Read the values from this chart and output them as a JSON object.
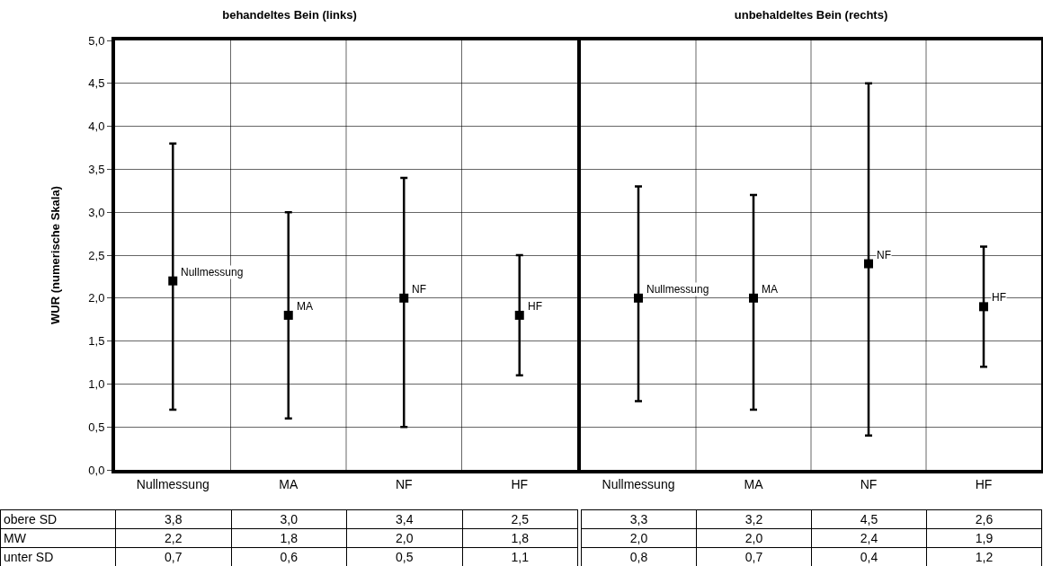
{
  "chart_data": [
    {
      "type": "scatter",
      "title": "behandeltes Bein (links)",
      "ylabel": "WUR (numerische Skala)",
      "categories": [
        "Nullmessung",
        "MA",
        "NF",
        "HF"
      ],
      "series": [
        {
          "name": "MW",
          "color": "#000000",
          "values": [
            2.2,
            1.8,
            2.0,
            1.8
          ],
          "value_labels": [
            "2,2",
            "1,8",
            "2,0",
            "1,8"
          ],
          "errors": [
            [
              0.7,
              3.8
            ],
            [
              0.6,
              3.0
            ],
            [
              0.5,
              3.4
            ],
            [
              1.1,
              2.5
            ]
          ]
        }
      ],
      "annotations": [
        "obere SD",
        "3,8",
        "3,0",
        "3,4",
        "2,5",
        "unter SD",
        "0,7",
        "0,6",
        "0,5",
        "1,1"
      ],
      "ylim": [
        0,
        5
      ],
      "yticks": [
        {
          "value": 0,
          "label": "0,0"
        },
        {
          "value": 0.5,
          "label": "0,5"
        },
        {
          "value": 1,
          "label": "1,0"
        },
        {
          "value": 1.5,
          "label": "1,5"
        },
        {
          "value": 2,
          "label": "2,0"
        },
        {
          "value": 2.5,
          "label": "2,5"
        },
        {
          "value": 3,
          "label": "3,0"
        },
        {
          "value": 3.5,
          "label": "3,5"
        },
        {
          "value": 4,
          "label": "4,0"
        },
        {
          "value": 4.5,
          "label": "4,5"
        },
        {
          "value": 5,
          "label": "5,0"
        }
      ],
      "grid": true,
      "marker": "square"
    },
    {
      "type": "scatter",
      "title": "unbehaldeltes Bein (rechts)",
      "categories": [
        "Nullmessung",
        "MA",
        "NF",
        "HF"
      ],
      "series": [
        {
          "color": "#000000",
          "values": [
            2.0,
            2.0,
            2.4,
            1.9
          ],
          "value_labels": [
            "2,0",
            "2,0",
            "2,4",
            "1,9"
          ],
          "errors": [
            [
              0.8,
              3.3
            ],
            [
              0.7,
              3.2
            ],
            [
              0.4,
              4.5
            ],
            [
              1.2,
              2.6
            ]
          ]
        }
      ],
      "annotations": [
        "3,3",
        "3,2",
        "4,5",
        "2,6",
        "0,8",
        "0,7",
        "0,4",
        "1,2"
      ],
      "ylim": [
        0,
        5
      ],
      "yticks": [
        0,
        0.5,
        1,
        1.5,
        2,
        2.5,
        3,
        3.5,
        4,
        4.5,
        5
      ],
      "tick_labels": "x",
      "grid": true,
      "marker": "square"
    }
  ]
}
